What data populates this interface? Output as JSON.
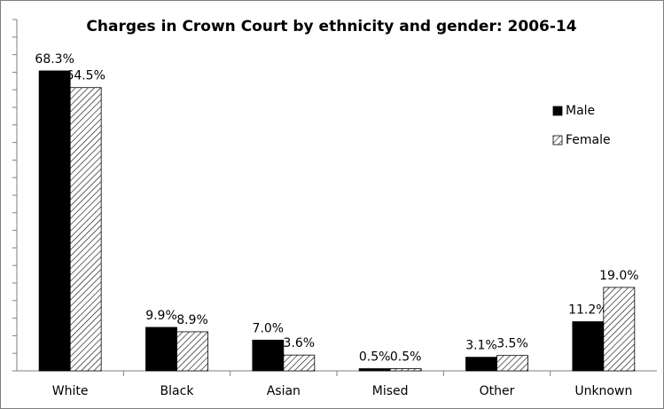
{
  "chart_data": {
    "type": "bar",
    "title": "Charges in Crown Court by ethnicity and gender: 2006-14",
    "categories": [
      "White",
      "Black",
      "Asian",
      "Mised",
      "Other",
      "Unknown"
    ],
    "series": [
      {
        "name": "Male",
        "color": "#000000",
        "values": [
          68.3,
          9.9,
          7.0,
          0.5,
          3.1,
          11.2
        ],
        "value_labels": [
          "68.3%",
          "9.9%",
          "7.0%",
          "0.5%",
          "3.1%",
          "11.2%"
        ]
      },
      {
        "name": "Female",
        "color": "#000000",
        "hatch": true,
        "values": [
          64.5,
          8.9,
          3.6,
          0.5,
          3.5,
          19.0
        ],
        "value_labels": [
          "64.5%",
          "8.9%",
          "3.6%",
          "0.5%",
          "3.5%",
          "19.0%"
        ]
      }
    ],
    "ylim": [
      0,
      80
    ],
    "yticks": [
      0,
      4,
      8,
      12,
      16,
      20,
      24,
      28,
      32,
      36,
      40,
      44,
      48,
      52,
      56,
      60,
      64,
      68,
      72,
      76,
      80
    ],
    "legend": "right"
  }
}
